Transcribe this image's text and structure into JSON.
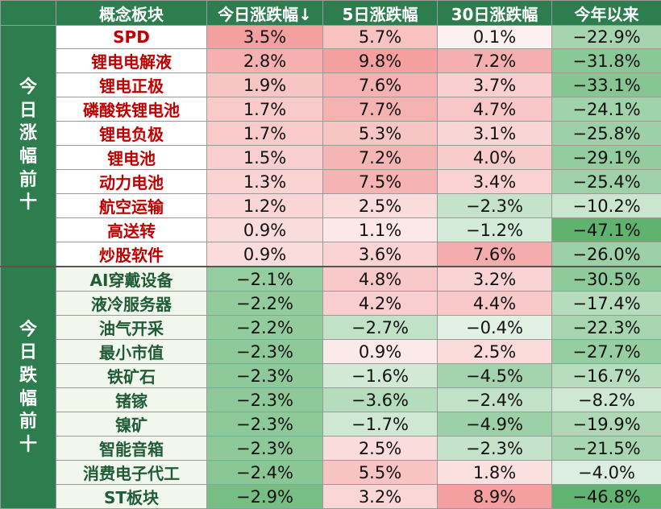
{
  "chart_data": {
    "type": "table",
    "columns": [
      "概念板块",
      "今日涨跌幅↓",
      "5日涨跌幅",
      "30日涨跌幅",
      "今年以来"
    ],
    "groups": [
      {
        "label": "今日涨幅前十",
        "direction": "up",
        "rows": [
          {
            "sector": "SPD",
            "values": [
              3.5,
              5.7,
              0.1,
              -22.9
            ]
          },
          {
            "sector": "锂电电解液",
            "values": [
              2.8,
              9.8,
              7.2,
              -31.8
            ]
          },
          {
            "sector": "锂电正极",
            "values": [
              1.9,
              7.6,
              3.7,
              -33.1
            ]
          },
          {
            "sector": "磷酸铁锂电池",
            "values": [
              1.7,
              7.7,
              4.7,
              -24.1
            ]
          },
          {
            "sector": "锂电负极",
            "values": [
              1.7,
              5.3,
              3.1,
              -25.8
            ]
          },
          {
            "sector": "锂电池",
            "values": [
              1.5,
              7.2,
              4.0,
              -29.1
            ]
          },
          {
            "sector": "动力电池",
            "values": [
              1.3,
              7.5,
              3.4,
              -25.4
            ]
          },
          {
            "sector": "航空运输",
            "values": [
              1.2,
              2.5,
              -2.3,
              -10.2
            ]
          },
          {
            "sector": "高送转",
            "values": [
              0.9,
              1.1,
              -1.2,
              -47.1
            ]
          },
          {
            "sector": "炒股软件",
            "values": [
              0.9,
              3.6,
              7.6,
              -26.0
            ]
          }
        ]
      },
      {
        "label": "今日跌幅前十",
        "direction": "down",
        "rows": [
          {
            "sector": "AI穿戴设备",
            "values": [
              -2.1,
              4.8,
              3.2,
              -30.5
            ]
          },
          {
            "sector": "液冷服务器",
            "values": [
              -2.2,
              4.2,
              4.4,
              -17.4
            ]
          },
          {
            "sector": "油气开采",
            "values": [
              -2.2,
              -2.7,
              -0.4,
              -22.3
            ]
          },
          {
            "sector": "最小市值",
            "values": [
              -2.3,
              0.9,
              2.5,
              -27.7
            ]
          },
          {
            "sector": "铁矿石",
            "values": [
              -2.3,
              -1.6,
              -4.5,
              -16.7
            ]
          },
          {
            "sector": "锗镓",
            "values": [
              -2.3,
              -3.6,
              -2.4,
              -8.2
            ]
          },
          {
            "sector": "镍矿",
            "values": [
              -2.3,
              -1.7,
              -4.9,
              -19.9
            ]
          },
          {
            "sector": "智能音箱",
            "values": [
              -2.3,
              2.5,
              -2.3,
              -21.5
            ]
          },
          {
            "sector": "消费电子代工",
            "values": [
              -2.4,
              5.5,
              1.8,
              -4.0
            ]
          },
          {
            "sector": "ST板块",
            "values": [
              -2.9,
              3.2,
              8.9,
              -46.8
            ]
          }
        ]
      }
    ],
    "value_format": "percent_1dp",
    "colors": {
      "positive_max": "#f4a0a0",
      "negative_max": "#5fb36f",
      "neutral": "#ffffff",
      "header_bg": "#2e7d4f",
      "up_label": "#c00000",
      "down_label": "#1f5c36"
    }
  }
}
